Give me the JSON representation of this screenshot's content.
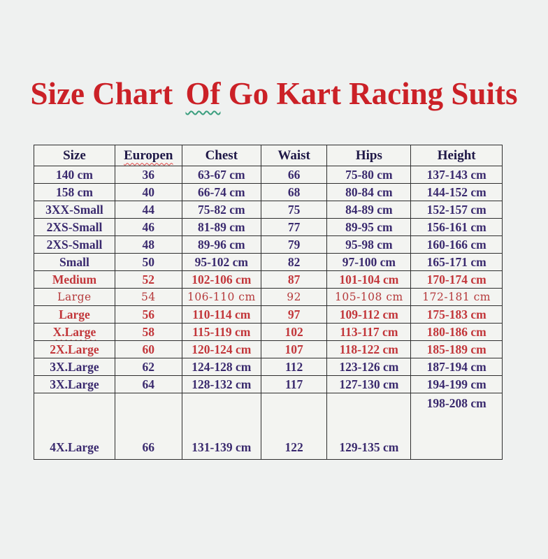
{
  "title": {
    "part1": "Size Chart ",
    "part2": "Of",
    "part3": " Go Kart Racing Suits"
  },
  "table": {
    "columns": [
      {
        "label": "Size",
        "misspelled": false
      },
      {
        "label": "Europen",
        "misspelled": true
      },
      {
        "label": "Chest",
        "misspelled": false
      },
      {
        "label": "Waist",
        "misspelled": false
      },
      {
        "label": "Hips",
        "misspelled": false
      },
      {
        "label": "Height",
        "misspelled": false
      }
    ],
    "rows": [
      {
        "style": "navy",
        "cells": [
          "140 cm",
          "36",
          "63-67 cm",
          "66",
          "75-80 cm",
          "137-143 cm"
        ]
      },
      {
        "style": "navy",
        "cells": [
          "158 cm",
          "40",
          "66-74 cm",
          "68",
          "80-84 cm",
          "144-152 cm"
        ]
      },
      {
        "style": "navy",
        "cells": [
          "3XX-Small",
          "44",
          "75-82 cm",
          "75",
          "84-89 cm",
          "152-157 cm"
        ]
      },
      {
        "style": "navy",
        "cells": [
          "2XS-Small",
          "46",
          "81-89 cm",
          "77",
          "89-95 cm",
          "156-161 cm"
        ]
      },
      {
        "style": "navy",
        "cells": [
          "2XS-Small",
          "48",
          "89-96 cm",
          "79",
          "95-98 cm",
          "160-166 cm"
        ]
      },
      {
        "style": "navy",
        "cells": [
          "Small",
          "50",
          "95-102 cm",
          "82",
          "97-100 cm",
          "165-171 cm"
        ]
      },
      {
        "style": "red",
        "cells": [
          "Medium",
          "52",
          "102-106 cm",
          "87",
          "101-104 cm",
          "170-174 cm"
        ]
      },
      {
        "style": "red-alt",
        "cells": [
          "Large",
          "54",
          "106-110 cm",
          "92",
          "105-108 cm",
          "172-181 cm"
        ]
      },
      {
        "style": "red",
        "cells": [
          "Large",
          "56",
          "110-114 cm",
          "97",
          "109-112 cm",
          "175-183 cm"
        ]
      },
      {
        "style": "red",
        "squiggle_first_cell": true,
        "cells": [
          "X.Large",
          "58",
          "115-119 cm",
          "102",
          "113-117 cm",
          "180-186 cm"
        ]
      },
      {
        "style": "red",
        "cells": [
          "2X.Large",
          "60",
          "120-124 cm",
          "107",
          "118-122 cm",
          "185-189 cm"
        ]
      },
      {
        "style": "navy",
        "cells": [
          "3X.Large",
          "62",
          "124-128 cm",
          "112",
          "123-126 cm",
          "187-194 cm"
        ]
      },
      {
        "style": "navy",
        "cells": [
          "3X.Large",
          "64",
          "128-132 cm",
          "117",
          "127-130 cm",
          "194-199 cm"
        ]
      },
      {
        "style": "navy",
        "tall": true,
        "height_cell_top": true,
        "cells": [
          "4X.Large",
          "66",
          "131-139 cm",
          "122",
          "129-135 cm",
          "198-208 cm"
        ]
      }
    ]
  },
  "colors": {
    "page_bg": "#eff1f0",
    "title_red": "#cb2127",
    "header_text": "#1f1847",
    "navy_text": "#3a2a6e",
    "red_text": "#c2363a",
    "red_alt_text": "#b5393b",
    "border": "#2e2e2e",
    "squiggle_green": "#3a9e7e",
    "squiggle_red": "#e04343"
  }
}
